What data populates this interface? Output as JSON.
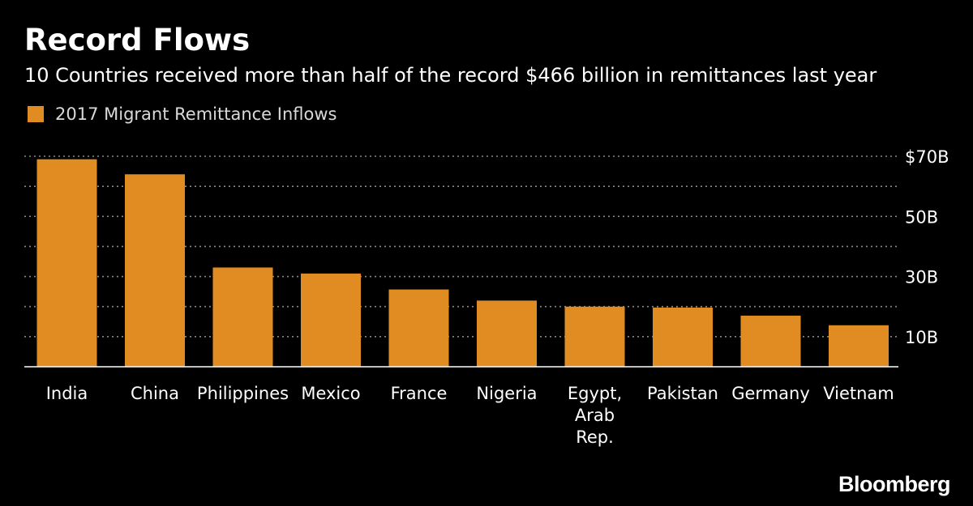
{
  "header": {
    "title": "Record Flows",
    "subtitle": "10 Countries received more than half of the record $466 billion in remittances last year"
  },
  "legend": {
    "label": "2017 Migrant Remittance Inflows",
    "color": "#e08c22"
  },
  "colors": {
    "background": "#000000",
    "bar": "#e08c22",
    "text": "#ffffff",
    "gridline": "#888888",
    "axis": "#ffffff"
  },
  "brand": {
    "name": "Bloomberg"
  },
  "chart_data": {
    "type": "bar",
    "title": "Record Flows",
    "subtitle": "10 Countries received more than half of the record $466 billion in remittances last year",
    "xlabel": "",
    "ylabel": "",
    "ylim": [
      0,
      70
    ],
    "y_unit": "billion USD",
    "y_ticks": [
      10,
      30,
      50,
      70
    ],
    "y_tick_labels": [
      "10B",
      "30B",
      "50B",
      "$70B"
    ],
    "minor_gridlines": [
      20,
      40,
      60
    ],
    "grid": true,
    "y_axis_position": "right",
    "legend_position": "top-left",
    "categories": [
      [
        "India"
      ],
      [
        "China"
      ],
      [
        "Philippines"
      ],
      [
        "Mexico"
      ],
      [
        "France"
      ],
      [
        "Nigeria"
      ],
      [
        "Egypt,",
        "Arab",
        "Rep."
      ],
      [
        "Pakistan"
      ],
      [
        "Germany"
      ],
      [
        "Vietnam"
      ]
    ],
    "series": [
      {
        "name": "2017 Migrant Remittance Inflows",
        "values": [
          69,
          64,
          33,
          31,
          25.7,
          22,
          20,
          19.7,
          17,
          13.8
        ]
      }
    ]
  }
}
